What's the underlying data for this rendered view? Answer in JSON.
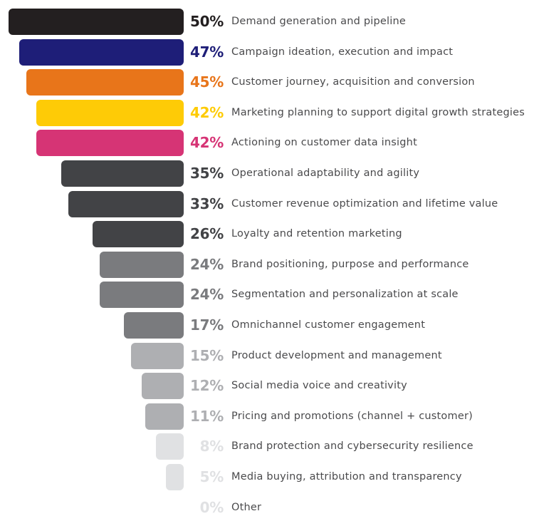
{
  "chart_data": {
    "type": "bar",
    "orientation": "horizontal-funnel",
    "title": "",
    "xlabel": "",
    "ylabel": "",
    "xlim": [
      0,
      50
    ],
    "grid": false,
    "unit": "%",
    "categories": [
      "Demand generation and pipeline",
      "Campaign ideation, execution and impact",
      "Customer journey, acquisition and conversion",
      "Marketing planning to support digital growth strategies",
      "Actioning on customer data insight",
      "Operational adaptability and agility",
      "Customer revenue optimization and lifetime value",
      "Loyalty and retention marketing",
      "Brand positioning, purpose and performance",
      "Segmentation and personalization at scale",
      "Omnichannel customer engagement",
      "Product development and management",
      "Social media voice and creativity",
      "Pricing and promotions (channel + customer)",
      "Brand protection and cybersecurity resilience",
      "Media buying, attribution and transparency",
      "Other"
    ],
    "values": [
      50,
      47,
      45,
      42,
      42,
      35,
      33,
      26,
      24,
      24,
      17,
      15,
      12,
      11,
      8,
      5,
      0
    ],
    "value_labels": [
      "50%",
      "47%",
      "45%",
      "42%",
      "42%",
      "35%",
      "33%",
      "26%",
      "24%",
      "24%",
      "17%",
      "15%",
      "12%",
      "11%",
      "8%",
      "5%",
      "0%"
    ],
    "bar_colors": [
      "#231f20",
      "#1e1e78",
      "#e8751a",
      "#fecb06",
      "#d63475",
      "#424346",
      "#424346",
      "#424346",
      "#7a7b7e",
      "#7a7b7e",
      "#7a7b7e",
      "#aeafb2",
      "#aeafb2",
      "#aeafb2",
      "#e0e1e3",
      "#e0e1e3",
      "#e0e1e3"
    ],
    "label_colors": [
      "#231f20",
      "#1e1e78",
      "#e8751a",
      "#fecb06",
      "#d63475",
      "#424346",
      "#424346",
      "#424346",
      "#7a7b7e",
      "#7a7b7e",
      "#7a7b7e",
      "#aeafb2",
      "#aeafb2",
      "#aeafb2",
      "#e0e1e3",
      "#e0e1e3",
      "#e0e1e3"
    ]
  }
}
